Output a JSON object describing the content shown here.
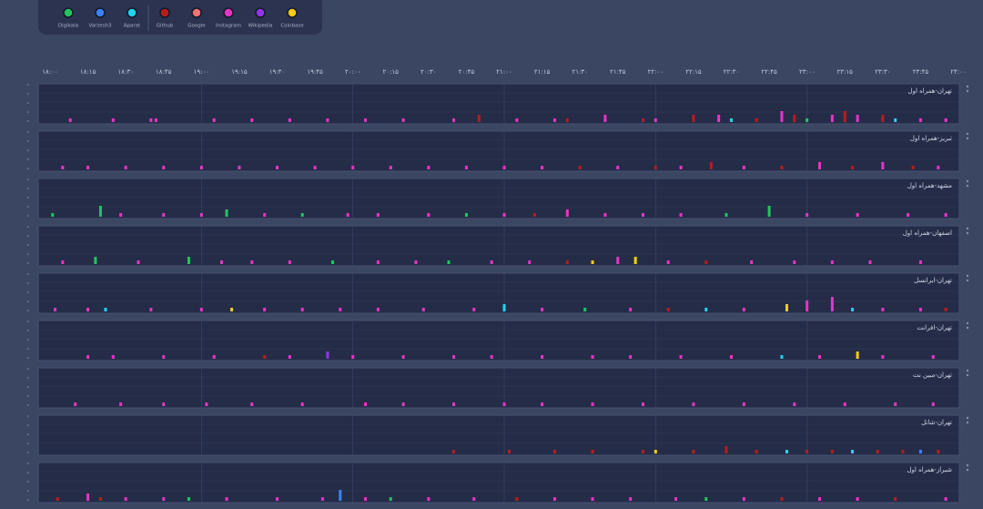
{
  "legend": {
    "items": [
      {
        "name": "Digikala",
        "color": "#22c55e"
      },
      {
        "name": "Varzesh3",
        "color": "#3b82f6"
      },
      {
        "name": "Aparat",
        "color": "#22d3ee"
      },
      {
        "name": "Github",
        "color": "#b91c1c"
      },
      {
        "name": "Google",
        "color": "#f87171"
      },
      {
        "name": "Instagram",
        "color": "#e834c5"
      },
      {
        "name": "Wikipedia",
        "color": "#9333ea"
      },
      {
        "name": "Coinbase",
        "color": "#facc15"
      }
    ]
  },
  "axis": {
    "ticks": [
      "۱۸:۰۰",
      "۱۸:۱۵",
      "۱۸:۳۰",
      "۱۸:۴۵",
      "۱۹:۰۰",
      "۱۹:۱۵",
      "۱۹:۳۰",
      "۱۹:۴۵",
      "۲۰:۰۰",
      "۲۰:۱۵",
      "۲۰:۳۰",
      "۲۰:۴۵",
      "۲۱:۰۰",
      "۲۱:۱۵",
      "۲۱:۳۰",
      "۲۱:۴۵",
      "۲۲:۰۰",
      "۲۲:۱۵",
      "۲۲:۳۰",
      "۲۲:۴۵",
      "۲۳:۰۰",
      "۲۳:۱۵",
      "۲۳:۳۰",
      "۲۳:۴۵",
      "۲۴:۰۰"
    ]
  },
  "panels": [
    {
      "title": "تهران-همراه اول",
      "events": [
        [
          8,
          5,
          1
        ],
        [
          25,
          5,
          1
        ],
        [
          40,
          5,
          1
        ],
        [
          42,
          5,
          1
        ],
        [
          65,
          5,
          1
        ],
        [
          80,
          5,
          1
        ],
        [
          95,
          5,
          1
        ],
        [
          110,
          5,
          1
        ],
        [
          125,
          5,
          1
        ],
        [
          140,
          5,
          1
        ],
        [
          160,
          5,
          1
        ],
        [
          170,
          3,
          2
        ],
        [
          185,
          5,
          1
        ],
        [
          200,
          5,
          1
        ],
        [
          205,
          3,
          1
        ],
        [
          220,
          5,
          2
        ],
        [
          235,
          3,
          1
        ],
        [
          240,
          5,
          1
        ],
        [
          255,
          3,
          2
        ],
        [
          265,
          5,
          2
        ],
        [
          270,
          2,
          1
        ],
        [
          280,
          3,
          1
        ],
        [
          290,
          5,
          3
        ],
        [
          295,
          3,
          2
        ],
        [
          300,
          0,
          1
        ],
        [
          310,
          5,
          2
        ],
        [
          315,
          3,
          3
        ],
        [
          320,
          5,
          2
        ],
        [
          330,
          3,
          2
        ],
        [
          335,
          2,
          1
        ],
        [
          345,
          5,
          1
        ],
        [
          355,
          5,
          1
        ]
      ]
    },
    {
      "title": "تبریز-همراه اول",
      "events": [
        [
          5,
          5,
          1
        ],
        [
          15,
          5,
          1
        ],
        [
          30,
          5,
          1
        ],
        [
          45,
          5,
          1
        ],
        [
          60,
          5,
          1
        ],
        [
          75,
          5,
          1
        ],
        [
          90,
          5,
          1
        ],
        [
          105,
          5,
          1
        ],
        [
          120,
          5,
          1
        ],
        [
          135,
          5,
          1
        ],
        [
          150,
          5,
          1
        ],
        [
          165,
          5,
          1
        ],
        [
          180,
          5,
          1
        ],
        [
          195,
          5,
          1
        ],
        [
          210,
          3,
          1
        ],
        [
          225,
          5,
          1
        ],
        [
          240,
          3,
          1
        ],
        [
          250,
          5,
          1
        ],
        [
          262,
          3,
          2
        ],
        [
          275,
          5,
          1
        ],
        [
          290,
          3,
          1
        ],
        [
          305,
          5,
          2
        ],
        [
          318,
          3,
          1
        ],
        [
          330,
          5,
          2
        ],
        [
          342,
          3,
          1
        ],
        [
          352,
          5,
          1
        ]
      ]
    },
    {
      "title": "مشهد-همراه اول",
      "events": [
        [
          1,
          0,
          1
        ],
        [
          20,
          0,
          3
        ],
        [
          28,
          5,
          1
        ],
        [
          45,
          5,
          1
        ],
        [
          60,
          5,
          1
        ],
        [
          70,
          0,
          2
        ],
        [
          85,
          5,
          1
        ],
        [
          100,
          0,
          1
        ],
        [
          118,
          5,
          1
        ],
        [
          130,
          5,
          1
        ],
        [
          150,
          5,
          1
        ],
        [
          165,
          0,
          1
        ],
        [
          180,
          5,
          1
        ],
        [
          192,
          3,
          1
        ],
        [
          205,
          5,
          2
        ],
        [
          220,
          5,
          1
        ],
        [
          235,
          5,
          1
        ],
        [
          250,
          5,
          1
        ],
        [
          268,
          0,
          1
        ],
        [
          285,
          0,
          3
        ],
        [
          300,
          5,
          1
        ],
        [
          320,
          5,
          1
        ],
        [
          340,
          5,
          1
        ],
        [
          355,
          5,
          1
        ]
      ]
    },
    {
      "title": "اصفهان-همراه اول",
      "events": [
        [
          5,
          5,
          1
        ],
        [
          18,
          0,
          2
        ],
        [
          35,
          5,
          1
        ],
        [
          55,
          0,
          2
        ],
        [
          68,
          5,
          1
        ],
        [
          80,
          5,
          1
        ],
        [
          95,
          5,
          1
        ],
        [
          112,
          0,
          1
        ],
        [
          130,
          5,
          1
        ],
        [
          145,
          5,
          1
        ],
        [
          158,
          0,
          1
        ],
        [
          175,
          5,
          1
        ],
        [
          190,
          5,
          1
        ],
        [
          205,
          3,
          1
        ],
        [
          215,
          7,
          1
        ],
        [
          225,
          5,
          2
        ],
        [
          232,
          7,
          2
        ],
        [
          245,
          5,
          1
        ],
        [
          260,
          3,
          1
        ],
        [
          278,
          5,
          1
        ],
        [
          295,
          5,
          1
        ],
        [
          310,
          5,
          1
        ],
        [
          325,
          5,
          1
        ],
        [
          345,
          5,
          1
        ]
      ]
    },
    {
      "title": "تهران-ایرانسل",
      "events": [
        [
          2,
          5,
          1
        ],
        [
          15,
          5,
          1
        ],
        [
          22,
          2,
          1
        ],
        [
          40,
          5,
          1
        ],
        [
          60,
          5,
          1
        ],
        [
          72,
          7,
          1
        ],
        [
          85,
          5,
          1
        ],
        [
          100,
          5,
          1
        ],
        [
          115,
          5,
          1
        ],
        [
          130,
          5,
          1
        ],
        [
          148,
          5,
          1
        ],
        [
          168,
          5,
          1
        ],
        [
          180,
          2,
          2
        ],
        [
          195,
          5,
          1
        ],
        [
          212,
          0,
          1
        ],
        [
          230,
          5,
          1
        ],
        [
          245,
          3,
          1
        ],
        [
          260,
          2,
          1
        ],
        [
          275,
          5,
          1
        ],
        [
          292,
          7,
          2
        ],
        [
          300,
          5,
          3
        ],
        [
          310,
          5,
          4
        ],
        [
          318,
          2,
          1
        ],
        [
          330,
          5,
          1
        ],
        [
          345,
          5,
          1
        ],
        [
          355,
          3,
          1
        ]
      ]
    },
    {
      "title": "تهران-افرانت",
      "events": [
        [
          15,
          5,
          1
        ],
        [
          25,
          5,
          1
        ],
        [
          45,
          5,
          1
        ],
        [
          65,
          5,
          1
        ],
        [
          85,
          3,
          1
        ],
        [
          95,
          5,
          1
        ],
        [
          110,
          6,
          2
        ],
        [
          120,
          5,
          1
        ],
        [
          140,
          5,
          1
        ],
        [
          160,
          5,
          1
        ],
        [
          175,
          5,
          1
        ],
        [
          195,
          5,
          1
        ],
        [
          215,
          5,
          1
        ],
        [
          230,
          5,
          1
        ],
        [
          250,
          5,
          1
        ],
        [
          270,
          5,
          1
        ],
        [
          290,
          2,
          1
        ],
        [
          305,
          5,
          1
        ],
        [
          320,
          7,
          2
        ],
        [
          330,
          5,
          1
        ],
        [
          350,
          5,
          1
        ]
      ]
    },
    {
      "title": "تهران-مبین نت",
      "events": [
        [
          10,
          5,
          1
        ],
        [
          28,
          5,
          1
        ],
        [
          45,
          5,
          1
        ],
        [
          62,
          5,
          1
        ],
        [
          80,
          5,
          1
        ],
        [
          100,
          5,
          1
        ],
        [
          125,
          5,
          1
        ],
        [
          140,
          5,
          1
        ],
        [
          160,
          5,
          1
        ],
        [
          180,
          5,
          1
        ],
        [
          195,
          5,
          1
        ],
        [
          215,
          5,
          1
        ],
        [
          235,
          5,
          1
        ],
        [
          255,
          5,
          1
        ],
        [
          275,
          5,
          1
        ],
        [
          295,
          5,
          1
        ],
        [
          315,
          5,
          1
        ],
        [
          335,
          5,
          1
        ],
        [
          350,
          5,
          1
        ]
      ]
    },
    {
      "title": "تهران-شاتل",
      "events": [
        [
          160,
          3,
          1
        ],
        [
          182,
          3,
          1
        ],
        [
          200,
          3,
          1
        ],
        [
          215,
          3,
          1
        ],
        [
          235,
          3,
          1
        ],
        [
          240,
          7,
          1
        ],
        [
          255,
          3,
          1
        ],
        [
          268,
          3,
          2
        ],
        [
          280,
          3,
          1
        ],
        [
          292,
          2,
          1
        ],
        [
          300,
          3,
          1
        ],
        [
          310,
          3,
          1
        ],
        [
          318,
          2,
          1
        ],
        [
          328,
          3,
          1
        ],
        [
          338,
          3,
          1
        ],
        [
          345,
          1,
          1
        ],
        [
          352,
          3,
          1
        ]
      ]
    },
    {
      "title": "شیراز-همراه اول",
      "events": [
        [
          3,
          3,
          1
        ],
        [
          15,
          5,
          2
        ],
        [
          20,
          3,
          1
        ],
        [
          30,
          5,
          1
        ],
        [
          45,
          5,
          1
        ],
        [
          55,
          0,
          1
        ],
        [
          70,
          5,
          1
        ],
        [
          90,
          5,
          1
        ],
        [
          108,
          5,
          1
        ],
        [
          115,
          1,
          3
        ],
        [
          125,
          5,
          1
        ],
        [
          135,
          0,
          1
        ],
        [
          150,
          5,
          1
        ],
        [
          168,
          5,
          1
        ],
        [
          185,
          3,
          1
        ],
        [
          200,
          5,
          1
        ],
        [
          215,
          5,
          1
        ],
        [
          230,
          5,
          1
        ],
        [
          248,
          5,
          1
        ],
        [
          260,
          0,
          1
        ],
        [
          275,
          5,
          1
        ],
        [
          290,
          3,
          1
        ],
        [
          305,
          5,
          1
        ],
        [
          320,
          5,
          1
        ],
        [
          335,
          3,
          1
        ],
        [
          355,
          5,
          1
        ]
      ]
    }
  ]
}
